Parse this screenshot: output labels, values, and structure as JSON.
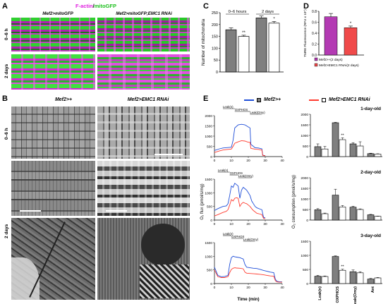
{
  "panel_a": {
    "label": "A",
    "header_part1": "F-actin",
    "header_sep": "/",
    "header_part2": "mitoGFP",
    "col1": "Mef2>mitoGFP",
    "col2": "Mef2>mitoGFP;EMC1 RNAi",
    "row1": "0–6 h",
    "row2": "2 days"
  },
  "panel_b": {
    "label": "B",
    "col1": "Mef2>+",
    "col2": "Mef2>EMC1 RNAi",
    "row1": "0–6 h",
    "row2": "2 days"
  },
  "panel_c": {
    "label": "C"
  },
  "panel_d": {
    "label": "D"
  },
  "panel_e": {
    "label": "E",
    "legend1": "Mef2>+",
    "legend2": "Mef2>EMC1 RNAi",
    "trace_ylabel": "O₂ flux (pmol/s/mg)",
    "trace_xlabel": "Time (min)",
    "bar_ylabel": "O₂ consumption (pmol/s/mg)",
    "phase_labels": [
      "Leak(n)",
      "OXPHOS",
      "Leak(Omy)"
    ]
  },
  "chart_data": [
    {
      "id": "C",
      "type": "bar",
      "categories": [
        "Mef2>+ 0–6 hours",
        "EMC1 RNAi 0–6 hours",
        "Mef2>+ 2 days",
        "EMC1 RNAi 2 days"
      ],
      "group_labels": [
        "0–6 hours",
        "2 days"
      ],
      "values": [
        178,
        150,
        228,
        206
      ],
      "errors": [
        8,
        5,
        8,
        7
      ],
      "significance": [
        "",
        "**",
        "",
        "*"
      ],
      "ylabel": "Number of mitochondria",
      "ylim": [
        0,
        250
      ],
      "yticks": [
        0,
        50,
        100,
        150,
        200,
        250
      ],
      "colors": [
        "#7f7f7f",
        "#ffffff",
        "#7f7f7f",
        "#ffffff"
      ]
    },
    {
      "id": "D",
      "type": "bar",
      "categories": [
        "Mef2>+(2 days)",
        "Mef2>EMC1 RNAi(2 days)"
      ],
      "values": [
        0.7,
        0.5
      ],
      "errors": [
        0.06,
        0.03
      ],
      "significance": [
        "",
        "*"
      ],
      "ylabel": "TMRE Fluorescence (RFU x 10⁵)",
      "ylim": [
        0,
        0.8
      ],
      "yticks": [
        0.0,
        0.2,
        0.4,
        0.6,
        0.8
      ],
      "legend": [
        "Mef2>+(2 days)",
        "Mef2>EMC1 RNAi(2 days)"
      ],
      "colors": [
        "#b33ab3",
        "#f04a4a"
      ]
    },
    {
      "id": "E-bars-1day",
      "type": "bar",
      "title": "1-day-old",
      "categories": [
        "Leak(n)",
        "OXPHOS",
        "Leak(Omy)",
        "Ant"
      ],
      "series": [
        {
          "name": "Mef2>+",
          "values": [
            470,
            1600,
            600,
            140
          ]
        },
        {
          "name": "Mef2>EMC1 RNAi",
          "values": [
            360,
            800,
            500,
            120
          ]
        }
      ],
      "errors": [
        [
          130,
          20,
          60,
          20
        ],
        [
          120,
          90,
          200,
          15
        ]
      ],
      "significance": [
        "",
        "**",
        "",
        ""
      ],
      "ylim": [
        0,
        2000
      ],
      "yticks": [
        0,
        500,
        1000,
        1500,
        2000
      ]
    },
    {
      "id": "E-bars-2day",
      "type": "bar",
      "title": "2-day-old",
      "categories": [
        "Leak(n)",
        "OXPHOS",
        "Leak(Omy)",
        "Ant"
      ],
      "series": [
        {
          "name": "Mef2>+",
          "values": [
            490,
            1180,
            610,
            250
          ]
        },
        {
          "name": "Mef2>EMC1 RNAi",
          "values": [
            300,
            620,
            500,
            180
          ]
        }
      ],
      "errors": [
        [
          50,
          280,
          40,
          20
        ],
        [
          30,
          70,
          30,
          10
        ]
      ],
      "significance": [
        "",
        "",
        "",
        ""
      ],
      "ylim": [
        0,
        2000
      ],
      "yticks": [
        0,
        500,
        1000,
        1500,
        2000
      ]
    },
    {
      "id": "E-bars-3day",
      "type": "bar",
      "title": "3-day-old",
      "categories": [
        "Leak(n)",
        "OXPHOS",
        "Leak(Omy)",
        "Ant"
      ],
      "series": [
        {
          "name": "Mef2>+",
          "values": [
            260,
            960,
            420,
            160
          ]
        },
        {
          "name": "Mef2>EMC1 RNAi",
          "values": [
            250,
            470,
            380,
            200
          ]
        }
      ],
      "errors": [
        [
          30,
          20,
          60,
          20
        ],
        [
          20,
          40,
          40,
          15
        ]
      ],
      "significance": [
        "",
        "**",
        "",
        ""
      ],
      "ylim": [
        0,
        1500
      ],
      "yticks": [
        0,
        500,
        1000,
        1500
      ]
    }
  ],
  "traces": [
    {
      "yticks": [
        0,
        500,
        1000,
        1500,
        2000
      ],
      "ylim": [
        0,
        2000
      ],
      "xticks": [
        0,
        10,
        20,
        30,
        40
      ],
      "xlim": [
        0,
        40
      ],
      "phase_x": [
        [
          5,
          12
        ],
        [
          12,
          21
        ],
        [
          21,
          28
        ]
      ],
      "blue": [
        [
          0,
          300
        ],
        [
          3,
          380
        ],
        [
          5,
          420
        ],
        [
          8,
          440
        ],
        [
          10,
          460
        ],
        [
          11,
          800
        ],
        [
          12,
          1400
        ],
        [
          14,
          1550
        ],
        [
          16,
          1580
        ],
        [
          18,
          1550
        ],
        [
          19,
          1500
        ],
        [
          20,
          1450
        ],
        [
          21,
          1400
        ],
        [
          21.5,
          600
        ],
        [
          23,
          500
        ],
        [
          24,
          430
        ],
        [
          26,
          420
        ],
        [
          27,
          400
        ],
        [
          28,
          380
        ],
        [
          28.5,
          80
        ],
        [
          29,
          60
        ],
        [
          30,
          50
        ]
      ],
      "red": [
        [
          0,
          200
        ],
        [
          3,
          280
        ],
        [
          5,
          320
        ],
        [
          8,
          350
        ],
        [
          10,
          370
        ],
        [
          11,
          500
        ],
        [
          12,
          650
        ],
        [
          14,
          720
        ],
        [
          16,
          780
        ],
        [
          18,
          760
        ],
        [
          20,
          700
        ],
        [
          21,
          700
        ],
        [
          21.5,
          400
        ],
        [
          23,
          380
        ],
        [
          24,
          360
        ],
        [
          26,
          350
        ],
        [
          27,
          330
        ],
        [
          28,
          320
        ],
        [
          28.5,
          60
        ],
        [
          29,
          50
        ],
        [
          30,
          40
        ]
      ]
    },
    {
      "yticks": [
        0,
        500,
        1000,
        1500
      ],
      "ylim": [
        0,
        1500
      ],
      "xticks": [
        0,
        10,
        20,
        30,
        40
      ],
      "xlim": [
        0,
        40
      ],
      "phase_x": [
        [
          2,
          9
        ],
        [
          9,
          14
        ],
        [
          14,
          22
        ]
      ],
      "blue": [
        [
          0,
          350
        ],
        [
          2,
          420
        ],
        [
          5,
          500
        ],
        [
          7,
          520
        ],
        [
          8,
          600
        ],
        [
          9,
          900
        ],
        [
          10,
          1250
        ],
        [
          11,
          1200
        ],
        [
          12,
          1350
        ],
        [
          13,
          1300
        ],
        [
          14,
          1250
        ],
        [
          15,
          800
        ],
        [
          16,
          1100
        ],
        [
          17,
          1200
        ],
        [
          18,
          1150
        ],
        [
          19,
          1100
        ],
        [
          20,
          1000
        ],
        [
          21,
          900
        ],
        [
          22,
          700
        ],
        [
          23,
          600
        ],
        [
          24,
          500
        ],
        [
          25,
          450
        ],
        [
          27,
          400
        ],
        [
          28,
          380
        ],
        [
          29,
          100
        ],
        [
          30,
          80
        ]
      ],
      "red": [
        [
          0,
          150
        ],
        [
          2,
          200
        ],
        [
          5,
          280
        ],
        [
          7,
          320
        ],
        [
          8,
          380
        ],
        [
          9,
          550
        ],
        [
          10,
          750
        ],
        [
          11,
          700
        ],
        [
          12,
          800
        ],
        [
          13,
          820
        ],
        [
          14,
          800
        ],
        [
          15,
          500
        ],
        [
          16,
          600
        ],
        [
          17,
          650
        ],
        [
          18,
          620
        ],
        [
          19,
          600
        ],
        [
          20,
          550
        ],
        [
          21,
          500
        ],
        [
          22,
          420
        ],
        [
          23,
          350
        ],
        [
          24,
          300
        ],
        [
          25,
          250
        ],
        [
          27,
          220
        ],
        [
          28,
          200
        ],
        [
          29,
          60
        ],
        [
          30,
          50
        ]
      ]
    },
    {
      "yticks": [
        0,
        500,
        1000,
        1500
      ],
      "ylim": [
        0,
        1500
      ],
      "xticks": [
        0,
        10,
        20,
        30,
        40
      ],
      "xlim": [
        0,
        40
      ],
      "phase_x": [
        [
          5,
          10
        ],
        [
          10,
          17
        ],
        [
          17,
          24
        ]
      ],
      "blue": [
        [
          0,
          600
        ],
        [
          2,
          300
        ],
        [
          4,
          250
        ],
        [
          6,
          260
        ],
        [
          8,
          300
        ],
        [
          9,
          700
        ],
        [
          10,
          950
        ],
        [
          11,
          1000
        ],
        [
          12,
          980
        ],
        [
          13,
          970
        ],
        [
          15,
          950
        ],
        [
          17,
          900
        ],
        [
          18,
          700
        ],
        [
          19,
          600
        ],
        [
          21,
          580
        ],
        [
          23,
          560
        ],
        [
          25,
          550
        ],
        [
          27,
          520
        ],
        [
          29,
          480
        ],
        [
          31,
          450
        ],
        [
          33,
          420
        ],
        [
          35,
          400
        ],
        [
          36,
          150
        ],
        [
          37,
          80
        ],
        [
          38,
          70
        ],
        [
          40,
          60
        ]
      ],
      "red": [
        [
          0,
          500
        ],
        [
          2,
          250
        ],
        [
          4,
          220
        ],
        [
          6,
          220
        ],
        [
          8,
          250
        ],
        [
          9,
          400
        ],
        [
          10,
          520
        ],
        [
          11,
          560
        ],
        [
          12,
          580
        ],
        [
          13,
          570
        ],
        [
          15,
          560
        ],
        [
          17,
          540
        ],
        [
          18,
          420
        ],
        [
          19,
          380
        ],
        [
          21,
          370
        ],
        [
          23,
          360
        ],
        [
          25,
          350
        ],
        [
          27,
          340
        ],
        [
          29,
          320
        ],
        [
          31,
          300
        ],
        [
          33,
          280
        ],
        [
          35,
          270
        ],
        [
          36,
          100
        ],
        [
          37,
          60
        ],
        [
          38,
          55
        ],
        [
          40,
          50
        ]
      ]
    }
  ]
}
